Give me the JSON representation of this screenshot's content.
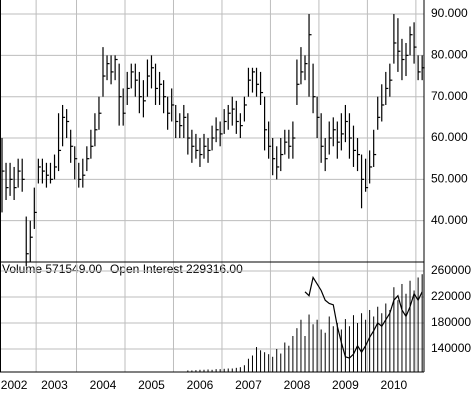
{
  "chart_data": [
    {
      "type": "ohlc",
      "categories": [
        null,
        null,
        null,
        "2002",
        null,
        null,
        null,
        null,
        null,
        null,
        null,
        null,
        null,
        "2003",
        null,
        null,
        null,
        null,
        null,
        null,
        null,
        null,
        null,
        null,
        null,
        "2004",
        null,
        null,
        null,
        null,
        null,
        null,
        null,
        null,
        null,
        null,
        null,
        "2005",
        null,
        null,
        null,
        null,
        null,
        null,
        null,
        null,
        null,
        null,
        null,
        "2006",
        null,
        null,
        null,
        null,
        null,
        null,
        null,
        null,
        null,
        null,
        null,
        "2007",
        null,
        null,
        null,
        null,
        null,
        null,
        null,
        null,
        null,
        null,
        null,
        "2008",
        null,
        null,
        null,
        null,
        null,
        null,
        null,
        null,
        null,
        null,
        null,
        "2009",
        null,
        null,
        null,
        null,
        null,
        null,
        null,
        null,
        null,
        null,
        null,
        "2010",
        null,
        null,
        null,
        null,
        null,
        null,
        null
      ],
      "high": [
        60,
        54,
        54,
        53,
        55,
        55,
        41,
        40,
        48,
        55,
        55,
        54,
        54,
        56,
        66,
        68,
        67,
        62,
        58,
        54,
        55,
        58,
        62,
        66,
        70,
        82,
        80,
        80,
        80,
        78,
        72,
        76,
        78,
        78,
        76,
        74,
        79,
        80,
        78,
        76,
        74,
        70,
        72,
        68,
        66,
        68,
        66,
        62,
        61,
        60,
        61,
        60,
        63,
        65,
        64,
        67,
        68,
        70,
        69,
        66,
        70,
        77,
        77,
        77,
        76,
        70,
        64,
        60,
        58,
        60,
        62,
        62,
        64,
        79,
        82,
        80,
        90,
        78,
        70,
        66,
        60,
        64,
        65,
        64,
        66,
        68,
        66,
        63,
        60,
        56,
        55,
        57,
        62,
        70,
        73,
        76,
        78,
        90,
        89,
        84,
        83,
        87,
        88,
        80,
        80
      ],
      "low": [
        42,
        45,
        46,
        45,
        48,
        47,
        29,
        30,
        38,
        49,
        49,
        48,
        49,
        50,
        52,
        58,
        60,
        54,
        50,
        48,
        48,
        52,
        55,
        58,
        62,
        70,
        74,
        73,
        74,
        63,
        63,
        68,
        72,
        70,
        66,
        65,
        70,
        72,
        68,
        68,
        66,
        62,
        64,
        60,
        60,
        60,
        56,
        54,
        55,
        53,
        55,
        54,
        57,
        59,
        58,
        61,
        62,
        63,
        61,
        60,
        64,
        70,
        71,
        70,
        68,
        57,
        55,
        51,
        50,
        52,
        56,
        55,
        55,
        68,
        73,
        74,
        70,
        66,
        60,
        54,
        52,
        56,
        58,
        55,
        57,
        59,
        55,
        53,
        52,
        43,
        47,
        49,
        53,
        62,
        64,
        68,
        70,
        78,
        76,
        74,
        75,
        80,
        78,
        74,
        74
      ],
      "close": [
        52,
        48,
        50,
        48,
        52,
        50,
        32,
        36,
        42,
        53,
        52,
        51,
        50,
        53,
        57,
        65,
        64,
        58,
        55,
        50,
        51,
        55,
        58,
        62,
        66,
        75,
        78,
        76,
        79,
        70,
        66,
        72,
        76,
        74,
        70,
        69,
        75,
        77,
        72,
        73,
        70,
        66,
        68,
        64,
        63,
        65,
        60,
        58,
        57,
        56,
        58,
        57,
        60,
        62,
        61,
        64,
        66,
        67,
        64,
        63,
        68,
        74,
        76,
        73,
        71,
        62,
        58,
        55,
        53,
        56,
        59,
        58,
        60,
        73,
        76,
        78,
        85,
        70,
        65,
        58,
        55,
        60,
        62,
        59,
        61,
        64,
        60,
        57,
        56,
        50,
        48,
        53,
        56,
        65,
        68,
        72,
        74,
        83,
        81,
        79,
        80,
        85,
        82,
        76,
        77
      ],
      "color": "#000000",
      "ylim": [
        30,
        93.4
      ],
      "yticks": [
        {
          "value": 90,
          "label": "90.000"
        },
        {
          "value": 80,
          "label": "80.000"
        },
        {
          "value": 70,
          "label": "70.000"
        },
        {
          "value": 60,
          "label": "60.000"
        },
        {
          "value": 50,
          "label": "50.000"
        },
        {
          "value": 40,
          "label": "40.000"
        }
      ],
      "grid": true
    },
    {
      "type": "bar",
      "readouts": [
        "Volume 571549.00",
        "Open Interest 229316.00"
      ],
      "series": [
        {
          "type": "bar",
          "color": "#000000",
          "values": [
            null,
            null,
            null,
            null,
            null,
            null,
            null,
            null,
            null,
            null,
            null,
            null,
            null,
            null,
            null,
            null,
            null,
            null,
            null,
            null,
            null,
            null,
            null,
            null,
            null,
            null,
            null,
            null,
            null,
            null,
            null,
            null,
            null,
            null,
            null,
            null,
            null,
            null,
            null,
            null,
            null,
            null,
            null,
            null,
            null,
            null,
            107000,
            107000,
            107500,
            108000,
            108000,
            108500,
            108000,
            109000,
            109000,
            109500,
            110000,
            110000,
            111000,
            112000,
            115000,
            125000,
            130000,
            143000,
            138000,
            135000,
            132000,
            128000,
            140000,
            133000,
            150000,
            145000,
            160000,
            172000,
            185000,
            160000,
            193000,
            178000,
            185000,
            170000,
            165000,
            190000,
            175000,
            180000,
            170000,
            186000,
            175000,
            192000,
            180000,
            195000,
            185000,
            200000,
            190000,
            205000,
            195000,
            210000,
            200000,
            235000,
            215000,
            240000,
            225000,
            245000,
            230000,
            250000,
            255000
          ]
        },
        {
          "type": "line",
          "color": "#000000",
          "values": [
            null,
            null,
            null,
            null,
            null,
            null,
            null,
            null,
            null,
            null,
            null,
            null,
            null,
            null,
            null,
            null,
            null,
            null,
            null,
            null,
            null,
            null,
            null,
            null,
            null,
            null,
            null,
            null,
            null,
            null,
            null,
            null,
            null,
            null,
            null,
            null,
            null,
            null,
            null,
            null,
            null,
            null,
            null,
            null,
            null,
            null,
            null,
            null,
            null,
            null,
            null,
            null,
            null,
            null,
            null,
            null,
            null,
            null,
            null,
            null,
            null,
            null,
            null,
            null,
            null,
            null,
            null,
            null,
            null,
            null,
            null,
            null,
            null,
            null,
            null,
            228000,
            222000,
            250000,
            240000,
            230000,
            215000,
            210000,
            208000,
            175000,
            150000,
            128000,
            126000,
            132000,
            145000,
            135000,
            145000,
            158000,
            168000,
            180000,
            175000,
            185000,
            195000,
            215000,
            222000,
            200000,
            190000,
            205000,
            225000,
            215000,
            228000
          ]
        }
      ],
      "ylim": [
        104600,
        273800
      ],
      "yticks": [
        260000,
        220000,
        180000,
        140000
      ],
      "grid": true
    }
  ]
}
